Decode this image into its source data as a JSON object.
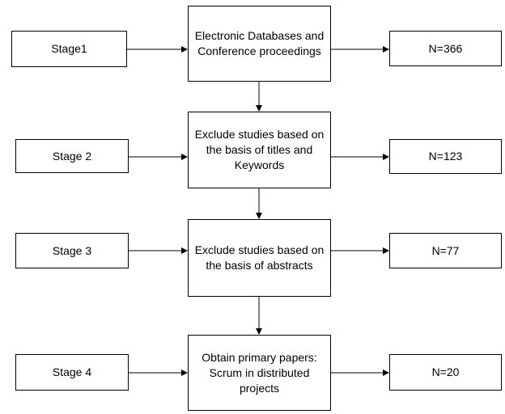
{
  "stages": [
    {
      "label": "Stage1",
      "process": "Electronic Databases and\nConference proceedings",
      "count": "N=366"
    },
    {
      "label": "Stage 2",
      "process": "Exclude studies based on\nthe basis of  titles and\nKeywords",
      "count": "N=123"
    },
    {
      "label": "Stage 3",
      "process": "Exclude studies based on\nthe basis of  abstracts",
      "count": "N=77"
    },
    {
      "label": "Stage 4",
      "process": "Obtain primary papers:\nScrum in distributed\nprojects",
      "count": "N=20"
    }
  ]
}
